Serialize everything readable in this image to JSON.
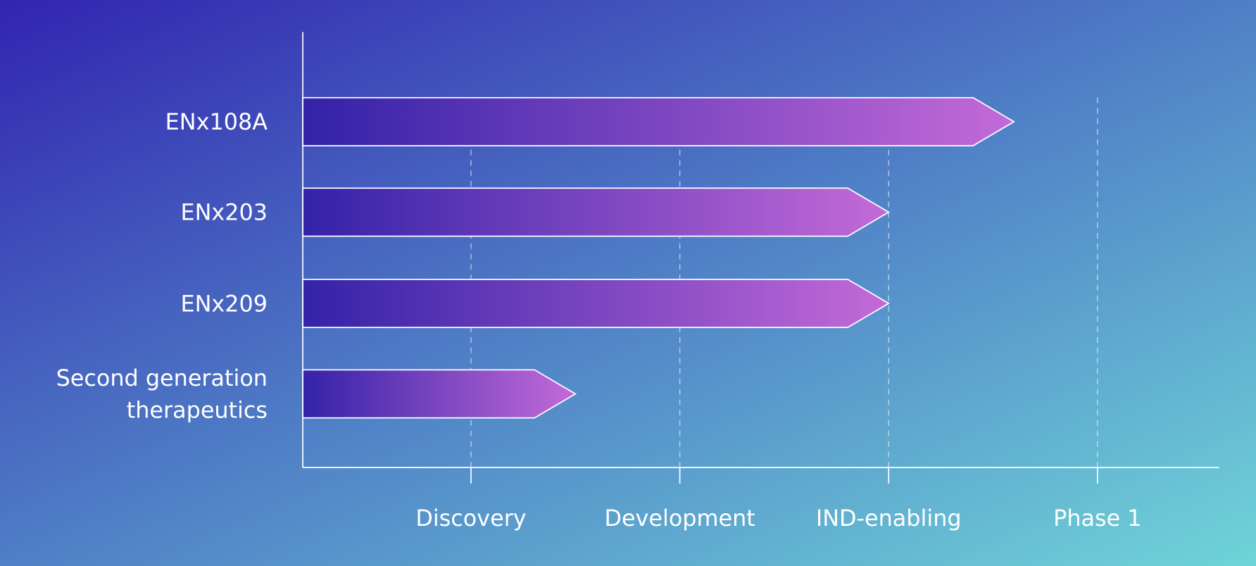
{
  "chart_data": {
    "type": "bar",
    "orientation": "horizontal",
    "title": "",
    "xlabel": "",
    "ylabel": "",
    "stages": [
      "Discovery",
      "Development",
      "IND-enabling",
      "Phase 1"
    ],
    "categories": [
      "ENx108A",
      "ENx203",
      "ENx209",
      "Second generation therapeutics"
    ],
    "category_lines": [
      [
        "ENx108A"
      ],
      [
        "ENx203"
      ],
      [
        "ENx209"
      ],
      [
        "Second generation",
        "therapeutics"
      ]
    ],
    "values": [
      3.6,
      3.0,
      3.0,
      1.5
    ],
    "xlim": [
      0.8,
      4.6
    ],
    "value_note": "stage index: 1=Discovery, 2=Development, 3=IND-enabling, 4=Phase 1",
    "grid": true,
    "legend": "none",
    "colors": {
      "bg_start": "#3224b0",
      "bg_mid": "#4f7fc6",
      "bg_end": "#6fd4d8",
      "bar_start": "#3322a8",
      "bar_end": "#c46ad8",
      "axis": "#ffffff"
    }
  }
}
